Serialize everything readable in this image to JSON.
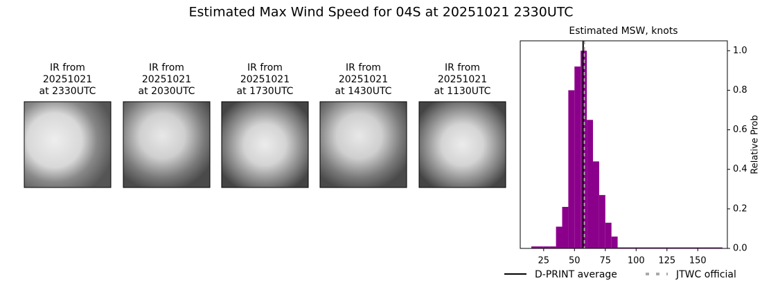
{
  "title": "Estimated Max Wind Speed for 04S at 20251021 2330UTC",
  "panels": [
    {
      "title": [
        "IR from",
        "20251021",
        "at 2330UTC"
      ]
    },
    {
      "title": [
        "IR from",
        "20251021",
        "at 2030UTC"
      ]
    },
    {
      "title": [
        "IR from",
        "20251021",
        "at 1730UTC"
      ]
    },
    {
      "title": [
        "IR from",
        "20251021",
        "at 1430UTC"
      ]
    },
    {
      "title": [
        "IR from",
        "20251021",
        "at 1130UTC"
      ]
    }
  ],
  "chart_data": {
    "type": "histogram",
    "title": "Estimated MSW, knots",
    "y_label": "Relative Prob",
    "bins": [
      15,
      20,
      25,
      30,
      35,
      40,
      45,
      50,
      55,
      60,
      65,
      70,
      75,
      80,
      85,
      170
    ],
    "values": [
      0.01,
      0.01,
      0.01,
      0.01,
      0.11,
      0.21,
      0.8,
      0.92,
      1.0,
      0.65,
      0.44,
      0.27,
      0.13,
      0.06,
      0.005
    ],
    "color": "#8b008b",
    "xlim": [
      6,
      174
    ],
    "ylim": [
      0,
      1.05
    ],
    "xticks": [
      25,
      50,
      75,
      100,
      125,
      150
    ],
    "yticks": [
      {
        "value": 0,
        "label": "0.0"
      },
      {
        "value": 0.2,
        "label": "0.2"
      },
      {
        "value": 0.4,
        "label": "0.4"
      },
      {
        "value": 0.6,
        "label": "0.6"
      },
      {
        "value": 0.8,
        "label": "0.8"
      },
      {
        "value": 1.0,
        "label": "1.0"
      }
    ],
    "reference_lines": [
      {
        "name": "D-PRINT average",
        "value": 57,
        "color": "#000000",
        "style": "solid"
      },
      {
        "name": "JTWC official",
        "value": 58,
        "color": "#aaaaaa",
        "style": "dotted"
      }
    ]
  }
}
